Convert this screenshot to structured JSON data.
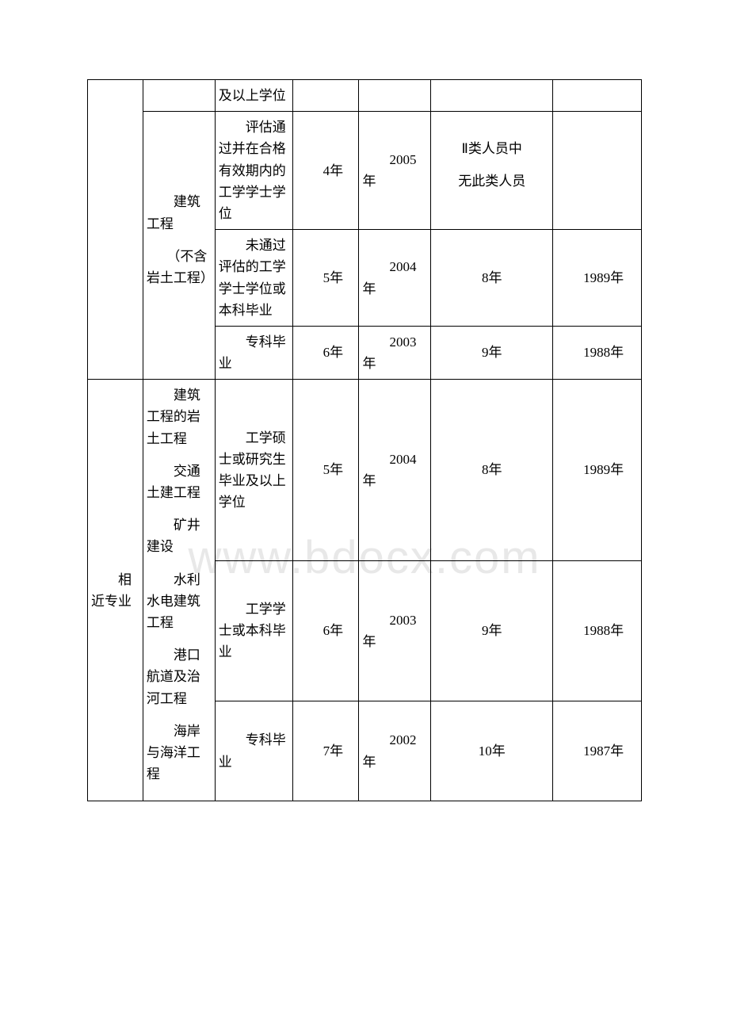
{
  "watermark": "www.bdocx.com",
  "table": {
    "col_widths": [
      "10%",
      "13%",
      "14%",
      "12%",
      "13%",
      "22%",
      "16%"
    ],
    "rows": [
      {
        "cells": [
          {
            "text": "",
            "rowspan": 4,
            "col": 0
          },
          {
            "text": "",
            "col": 1
          },
          {
            "text": "及以上学位",
            "col": 2
          },
          {
            "text": "",
            "col": 3
          },
          {
            "text": "",
            "col": 4
          },
          {
            "text": "",
            "col": 5
          },
          {
            "text": "",
            "col": 6
          }
        ]
      },
      {
        "cells": [
          {
            "text_blocks": [
              "　　建筑工程",
              "　　（不含岩土工程）"
            ],
            "rowspan": 3,
            "col": 1
          },
          {
            "text": "　　评估通过并在合格有效期内的工学学士学位",
            "col": 2
          },
          {
            "text": "　　4年",
            "col": 3
          },
          {
            "text": "　　2005年",
            "col": 4
          },
          {
            "text_blocks": [
              "Ⅱ类人员中",
              "无此类人员"
            ],
            "center": true,
            "col": 5
          },
          {
            "text": "",
            "col": 6
          }
        ]
      },
      {
        "cells": [
          {
            "text": "　　未通过评估的工学学士学位或本科毕业",
            "col": 2
          },
          {
            "text": "　　5年",
            "col": 3
          },
          {
            "text": "　　2004年",
            "col": 4
          },
          {
            "text": "8年",
            "center": true,
            "col": 5
          },
          {
            "text": "　　1989年",
            "col": 6
          }
        ]
      },
      {
        "cells": [
          {
            "text": "　　专科毕业",
            "col": 2
          },
          {
            "text": "　　6年",
            "col": 3
          },
          {
            "text": "　　2003年",
            "col": 4
          },
          {
            "text": "9年",
            "center": true,
            "col": 5
          },
          {
            "text": "　　1988年",
            "col": 6
          }
        ]
      },
      {
        "cells": [
          {
            "text": "　　相近专业",
            "rowspan": 3,
            "col": 0
          },
          {
            "text_blocks": [
              "　　建筑工程的岩土工程",
              "　　交通土建工程",
              "　　矿井建设",
              "　　水利水电建筑工程",
              "　　港口航道及治河工程",
              "　　海岸与海洋工程"
            ],
            "rowspan": 3,
            "col": 1
          },
          {
            "text": "　　工学硕士或研究生毕业及以上学位",
            "col": 2
          },
          {
            "text": "　　5年",
            "col": 3
          },
          {
            "text": "　　2004年",
            "col": 4
          },
          {
            "text": "8年",
            "center": true,
            "col": 5
          },
          {
            "text": "　　1989年",
            "col": 6
          }
        ]
      },
      {
        "cells": [
          {
            "text": "　　工学学士或本科毕业",
            "col": 2
          },
          {
            "text": "　　6年",
            "col": 3
          },
          {
            "text": "　　2003年",
            "col": 4
          },
          {
            "text": "9年",
            "center": true,
            "col": 5
          },
          {
            "text": "　　1988年",
            "col": 6
          }
        ]
      },
      {
        "cells": [
          {
            "text": "　　专科毕业",
            "col": 2
          },
          {
            "text": "　　7年",
            "col": 3
          },
          {
            "text": "　　2002年",
            "col": 4
          },
          {
            "text": "10年",
            "center": true,
            "col": 5
          },
          {
            "text": "　　1987年",
            "col": 6
          }
        ]
      }
    ]
  }
}
